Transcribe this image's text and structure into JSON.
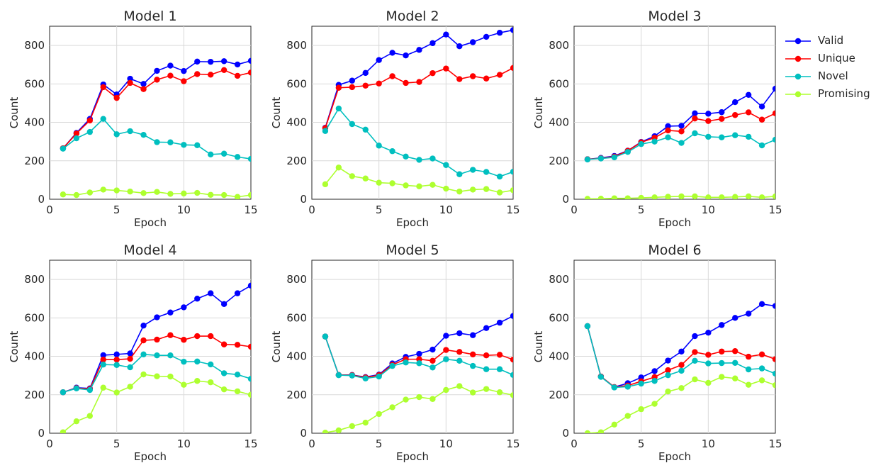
{
  "colors": {
    "Valid": "#0000ff",
    "Unique": "#ff0000",
    "Novel": "#00bfbf",
    "Promising": "#adff2f",
    "grid": "#d9d9d9"
  },
  "legend": {
    "placement": "right",
    "entries": [
      "Valid",
      "Unique",
      "Novel",
      "Promising"
    ]
  },
  "chart_data": [
    {
      "type": "line",
      "title": "Model 1",
      "xlabel": "Epoch",
      "ylabel": "Count",
      "xlim": [
        0,
        15
      ],
      "ylim": [
        0,
        900
      ],
      "xticks": [
        0,
        5,
        10,
        15
      ],
      "yticks": [
        0,
        200,
        400,
        600,
        800
      ],
      "grid": true,
      "x": [
        1,
        2,
        3,
        4,
        5,
        6,
        7,
        8,
        9,
        10,
        11,
        12,
        13,
        14,
        15
      ],
      "series": [
        {
          "name": "Valid",
          "values": [
            265,
            345,
            418,
            597,
            545,
            627,
            600,
            668,
            695,
            667,
            716,
            715,
            718,
            701,
            720
          ]
        },
        {
          "name": "Unique",
          "values": [
            265,
            342,
            410,
            583,
            527,
            605,
            573,
            622,
            643,
            614,
            651,
            648,
            672,
            642,
            659
          ]
        },
        {
          "name": "Novel",
          "values": [
            263,
            317,
            350,
            418,
            338,
            354,
            335,
            297,
            296,
            283,
            281,
            233,
            237,
            220,
            210
          ]
        },
        {
          "name": "Promising",
          "values": [
            25,
            22,
            35,
            50,
            46,
            40,
            32,
            38,
            28,
            30,
            33,
            23,
            22,
            12,
            22
          ]
        }
      ]
    },
    {
      "type": "line",
      "title": "Model 2",
      "xlabel": "Epoch",
      "ylabel": "Count",
      "xlim": [
        0,
        15
      ],
      "ylim": [
        0,
        900
      ],
      "xticks": [
        0,
        5,
        10,
        15
      ],
      "yticks": [
        0,
        200,
        400,
        600,
        800
      ],
      "grid": true,
      "x": [
        1,
        2,
        3,
        4,
        5,
        6,
        7,
        8,
        9,
        10,
        11,
        12,
        13,
        14,
        15
      ],
      "series": [
        {
          "name": "Valid",
          "values": [
            372,
            595,
            617,
            657,
            724,
            762,
            748,
            777,
            812,
            857,
            796,
            817,
            845,
            866,
            880
          ]
        },
        {
          "name": "Unique",
          "values": [
            370,
            580,
            583,
            591,
            602,
            640,
            605,
            610,
            656,
            680,
            625,
            640,
            628,
            647,
            683
          ]
        },
        {
          "name": "Novel",
          "values": [
            355,
            472,
            391,
            362,
            279,
            250,
            222,
            205,
            212,
            178,
            130,
            153,
            142,
            118,
            143
          ]
        },
        {
          "name": "Promising",
          "values": [
            78,
            165,
            120,
            108,
            86,
            83,
            72,
            67,
            75,
            55,
            40,
            50,
            53,
            35,
            47
          ]
        }
      ]
    },
    {
      "type": "line",
      "title": "Model 3",
      "xlabel": "Epoch",
      "ylabel": "Count",
      "xlim": [
        0,
        15
      ],
      "ylim": [
        0,
        900
      ],
      "xticks": [
        0,
        5,
        10,
        15
      ],
      "yticks": [
        0,
        200,
        400,
        600,
        800
      ],
      "grid": true,
      "x": [
        1,
        2,
        3,
        4,
        5,
        6,
        7,
        8,
        9,
        10,
        11,
        12,
        13,
        14,
        15
      ],
      "series": [
        {
          "name": "Valid",
          "values": [
            208,
            215,
            225,
            253,
            298,
            328,
            380,
            382,
            447,
            445,
            453,
            505,
            543,
            482,
            575
          ]
        },
        {
          "name": "Unique",
          "values": [
            208,
            213,
            222,
            252,
            296,
            320,
            358,
            353,
            420,
            407,
            418,
            438,
            452,
            414,
            447
          ]
        },
        {
          "name": "Novel",
          "values": [
            207,
            212,
            218,
            246,
            287,
            300,
            322,
            293,
            343,
            325,
            322,
            333,
            325,
            280,
            310
          ]
        },
        {
          "name": "Promising",
          "values": [
            2,
            3,
            5,
            5,
            7,
            10,
            13,
            15,
            15,
            10,
            10,
            12,
            15,
            10,
            15
          ]
        }
      ]
    },
    {
      "type": "line",
      "title": "Model 4",
      "xlabel": "Epoch",
      "ylabel": "Count",
      "xlim": [
        0,
        15
      ],
      "ylim": [
        0,
        900
      ],
      "xticks": [
        0,
        5,
        10,
        15
      ],
      "yticks": [
        0,
        200,
        400,
        600,
        800
      ],
      "grid": true,
      "x": [
        1,
        2,
        3,
        4,
        5,
        6,
        7,
        8,
        9,
        10,
        11,
        12,
        13,
        14,
        15
      ],
      "series": [
        {
          "name": "Valid",
          "values": [
            213,
            237,
            233,
            406,
            410,
            415,
            560,
            603,
            628,
            655,
            700,
            728,
            672,
            728,
            768
          ]
        },
        {
          "name": "Unique",
          "values": [
            213,
            235,
            230,
            383,
            383,
            387,
            483,
            487,
            510,
            486,
            505,
            505,
            462,
            460,
            450
          ]
        },
        {
          "name": "Novel",
          "values": [
            213,
            233,
            225,
            357,
            355,
            343,
            410,
            405,
            405,
            372,
            373,
            358,
            312,
            305,
            283
          ]
        },
        {
          "name": "Promising",
          "values": [
            5,
            62,
            90,
            237,
            212,
            242,
            306,
            296,
            295,
            252,
            272,
            265,
            228,
            218,
            200
          ]
        }
      ]
    },
    {
      "type": "line",
      "title": "Model 5",
      "xlabel": "Epoch",
      "ylabel": "Count",
      "xlim": [
        0,
        15
      ],
      "ylim": [
        0,
        900
      ],
      "xticks": [
        0,
        5,
        10,
        15
      ],
      "yticks": [
        0,
        200,
        400,
        600,
        800
      ],
      "grid": true,
      "x": [
        1,
        2,
        3,
        4,
        5,
        6,
        7,
        8,
        9,
        10,
        11,
        12,
        13,
        14,
        15
      ],
      "series": [
        {
          "name": "Valid",
          "values": [
            503,
            303,
            303,
            292,
            305,
            363,
            397,
            413,
            435,
            507,
            520,
            510,
            547,
            575,
            610
          ]
        },
        {
          "name": "Unique",
          "values": [
            503,
            303,
            302,
            290,
            302,
            356,
            385,
            385,
            377,
            433,
            423,
            410,
            405,
            408,
            383
          ]
        },
        {
          "name": "Novel",
          "values": [
            503,
            302,
            300,
            285,
            295,
            350,
            368,
            364,
            342,
            385,
            377,
            350,
            333,
            333,
            303
          ]
        },
        {
          "name": "Promising",
          "values": [
            3,
            15,
            37,
            55,
            100,
            135,
            175,
            188,
            178,
            225,
            245,
            212,
            230,
            213,
            198
          ]
        }
      ]
    },
    {
      "type": "line",
      "title": "Model 6",
      "xlabel": "Epoch",
      "ylabel": "Count",
      "xlim": [
        0,
        15
      ],
      "ylim": [
        0,
        900
      ],
      "xticks": [
        0,
        5,
        10,
        15
      ],
      "yticks": [
        0,
        200,
        400,
        600,
        800
      ],
      "grid": true,
      "x": [
        1,
        2,
        3,
        4,
        5,
        6,
        7,
        8,
        9,
        10,
        11,
        12,
        13,
        14,
        15
      ],
      "series": [
        {
          "name": "Valid",
          "values": [
            557,
            295,
            240,
            260,
            290,
            323,
            378,
            425,
            505,
            523,
            563,
            600,
            622,
            672,
            662
          ]
        },
        {
          "name": "Unique",
          "values": [
            557,
            295,
            240,
            248,
            270,
            292,
            328,
            355,
            422,
            408,
            425,
            427,
            398,
            410,
            385
          ]
        },
        {
          "name": "Novel",
          "values": [
            557,
            293,
            238,
            242,
            258,
            272,
            302,
            325,
            377,
            363,
            365,
            366,
            332,
            337,
            310
          ]
        },
        {
          "name": "Promising",
          "values": [
            0,
            5,
            45,
            90,
            125,
            153,
            217,
            235,
            280,
            262,
            293,
            285,
            252,
            275,
            250
          ]
        }
      ]
    }
  ]
}
